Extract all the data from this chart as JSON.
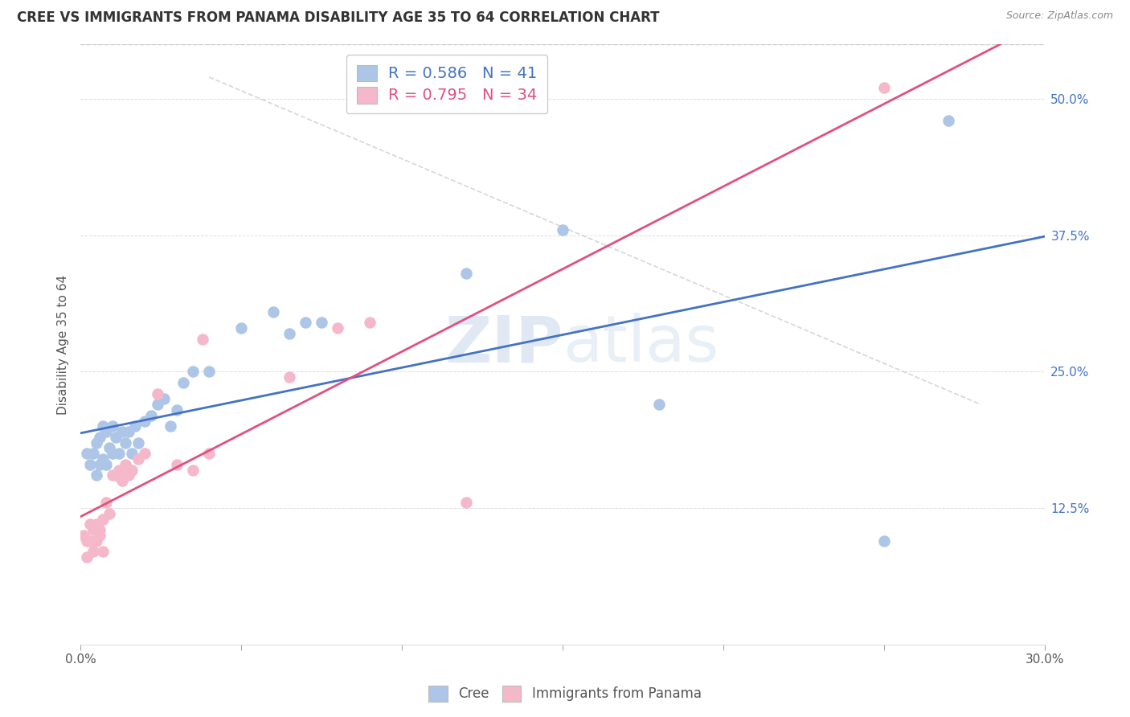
{
  "title": "CREE VS IMMIGRANTS FROM PANAMA DISABILITY AGE 35 TO 64 CORRELATION CHART",
  "source": "Source: ZipAtlas.com",
  "ylabel": "Disability Age 35 to 64",
  "xmin": 0.0,
  "xmax": 0.3,
  "ymin": 0.0,
  "ymax": 0.55,
  "xticks": [
    0.0,
    0.05,
    0.1,
    0.15,
    0.2,
    0.25,
    0.3
  ],
  "ytick_positions": [
    0.125,
    0.25,
    0.375,
    0.5
  ],
  "ytick_labels": [
    "12.5%",
    "25.0%",
    "37.5%",
    "50.0%"
  ],
  "legend_labels": [
    "Cree",
    "Immigrants from Panama"
  ],
  "cree_R": 0.586,
  "cree_N": 41,
  "panama_R": 0.795,
  "panama_N": 34,
  "cree_color": "#adc6e8",
  "panama_color": "#f5b8cb",
  "cree_line_color": "#4472c4",
  "panama_line_color": "#e05080",
  "watermark_color": "#d0e0f0",
  "cree_x": [
    0.002,
    0.003,
    0.004,
    0.005,
    0.005,
    0.006,
    0.006,
    0.007,
    0.007,
    0.008,
    0.008,
    0.009,
    0.01,
    0.01,
    0.011,
    0.012,
    0.013,
    0.014,
    0.015,
    0.016,
    0.017,
    0.018,
    0.02,
    0.022,
    0.024,
    0.026,
    0.028,
    0.03,
    0.032,
    0.035,
    0.04,
    0.05,
    0.06,
    0.065,
    0.07,
    0.075,
    0.12,
    0.15,
    0.18,
    0.25,
    0.27
  ],
  "cree_y": [
    0.175,
    0.165,
    0.175,
    0.185,
    0.155,
    0.19,
    0.165,
    0.2,
    0.17,
    0.195,
    0.165,
    0.18,
    0.175,
    0.2,
    0.19,
    0.175,
    0.195,
    0.185,
    0.195,
    0.175,
    0.2,
    0.185,
    0.205,
    0.21,
    0.22,
    0.225,
    0.2,
    0.215,
    0.24,
    0.25,
    0.25,
    0.29,
    0.305,
    0.285,
    0.295,
    0.295,
    0.34,
    0.38,
    0.22,
    0.095,
    0.48
  ],
  "panama_x": [
    0.001,
    0.002,
    0.002,
    0.003,
    0.003,
    0.004,
    0.004,
    0.005,
    0.005,
    0.006,
    0.006,
    0.007,
    0.007,
    0.008,
    0.009,
    0.01,
    0.011,
    0.012,
    0.013,
    0.014,
    0.015,
    0.016,
    0.018,
    0.02,
    0.024,
    0.03,
    0.035,
    0.038,
    0.04,
    0.065,
    0.08,
    0.09,
    0.12,
    0.25
  ],
  "panama_y": [
    0.1,
    0.08,
    0.095,
    0.11,
    0.095,
    0.105,
    0.085,
    0.11,
    0.095,
    0.105,
    0.1,
    0.115,
    0.085,
    0.13,
    0.12,
    0.155,
    0.155,
    0.16,
    0.15,
    0.165,
    0.155,
    0.16,
    0.17,
    0.175,
    0.23,
    0.165,
    0.16,
    0.28,
    0.175,
    0.245,
    0.29,
    0.295,
    0.13,
    0.51
  ]
}
